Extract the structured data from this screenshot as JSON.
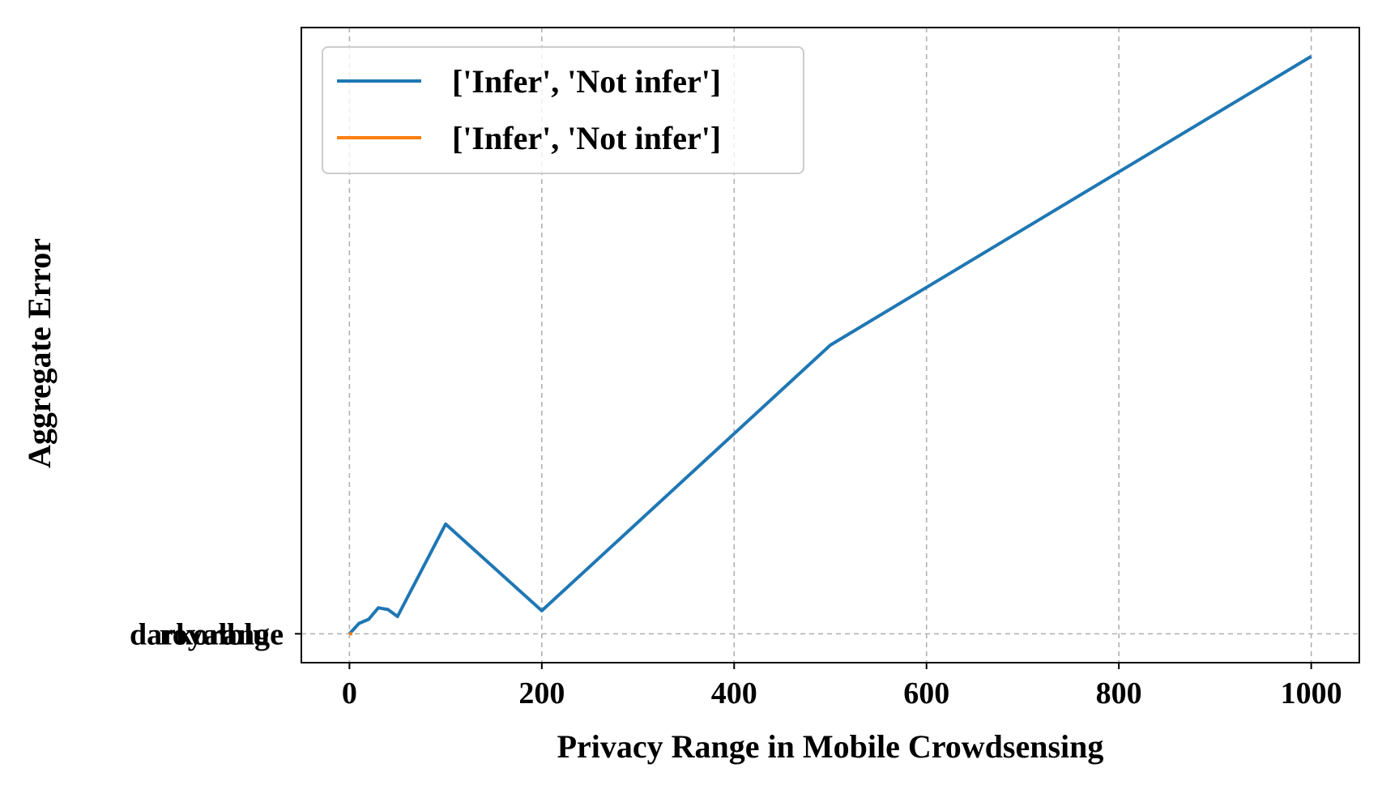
{
  "chart_data": {
    "type": "line",
    "xlabel": "Privacy Range in Mobile Crowdsensing",
    "ylabel": "Aggregate Error",
    "xlim": [
      -50,
      1050
    ],
    "ylim": [
      -0.05,
      1.05
    ],
    "xticks": [
      0,
      200,
      400,
      600,
      800,
      1000
    ],
    "yticks": [
      {
        "value": 0,
        "labels": [
          "darkorange",
          "royalblue"
        ]
      }
    ],
    "grid": true,
    "legend": "top-left",
    "series": [
      {
        "name": "['Infer', 'Not infer']",
        "color": "#1f77b4",
        "x": [
          0,
          10,
          20,
          30,
          40,
          50,
          100,
          200,
          500,
          1000
        ],
        "y": [
          0.0,
          0.018,
          0.025,
          0.045,
          0.042,
          0.03,
          0.19,
          0.04,
          0.5,
          1.0
        ]
      },
      {
        "name": "['Infer', 'Not infer']",
        "color": "#ff7f0e",
        "x": [
          0,
          3
        ],
        "y": [
          0.0,
          0.0
        ]
      }
    ]
  }
}
